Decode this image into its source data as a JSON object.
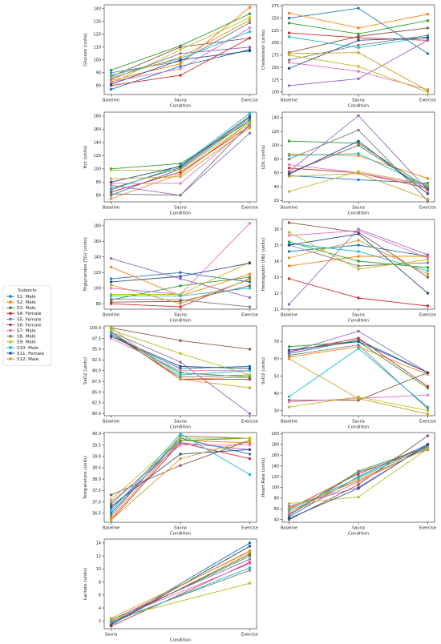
{
  "legend": {
    "title": "Subjects",
    "entries": [
      "S1: Male",
      "S2: Male",
      "S3: Male",
      "S4: Female",
      "S5: Female",
      "S6: Female",
      "S7: Male",
      "S8: Male",
      "S9: Male",
      "S10: Male",
      "S11: Female",
      "S12: Male"
    ],
    "colors": [
      "#1f77b4",
      "#ff7f0e",
      "#2ca02c",
      "#d62728",
      "#9467bd",
      "#8c564b",
      "#e377c2",
      "#7f7f7f",
      "#bcbd22",
      "#17becf",
      "#2b4a8b",
      "#c9a227"
    ],
    "placement": "left"
  },
  "chart_data": [
    {
      "type": "line",
      "ylabel": "Glucose (units)",
      "xlabel": "Condition",
      "categories": [
        "Baseline",
        "Sauna",
        "Exercise"
      ],
      "ylim": [
        73,
        143
      ],
      "yticks": [
        80,
        90,
        100,
        110,
        120,
        130,
        140
      ],
      "series": [
        {
          "values": [
            77,
            95,
            108
          ]
        },
        {
          "values": [
            84,
            97,
            141
          ]
        },
        {
          "values": [
            92,
            111,
            136
          ]
        },
        {
          "values": [
            80,
            88,
            117
          ]
        },
        {
          "values": [
            85,
            105,
            110
          ]
        },
        {
          "values": [
            87,
            110,
            117
          ]
        },
        {
          "values": [
            83,
            93,
            125
          ]
        },
        {
          "values": [
            90,
            99,
            129
          ]
        },
        {
          "values": [
            82,
            108,
            133
          ]
        },
        {
          "values": [
            88,
            101,
            122
          ]
        },
        {
          "values": [
            81,
            100,
            107
          ]
        },
        {
          "values": [
            86,
            102,
            131
          ]
        }
      ]
    },
    {
      "type": "line",
      "ylabel": "Cholesterol (units)",
      "xlabel": "Condition",
      "categories": [
        "Baseline",
        "Sauna",
        "Exercise"
      ],
      "ylim": [
        95,
        277
      ],
      "yticks": [
        100,
        125,
        150,
        175,
        200,
        225,
        250,
        275
      ],
      "series": [
        {
          "values": [
            250,
            270,
            178
          ]
        },
        {
          "values": [
            260,
            230,
            258
          ]
        },
        {
          "values": [
            240,
            218,
            245
          ]
        },
        {
          "values": [
            220,
            210,
            205
          ]
        },
        {
          "values": [
            113,
            127,
            205
          ]
        },
        {
          "values": [
            180,
            213,
            230
          ]
        },
        {
          "values": [
            160,
            142,
            105
          ]
        },
        {
          "values": [
            165,
            195,
            215
          ]
        },
        {
          "values": [
            175,
            152,
            100
          ]
        },
        {
          "values": [
            212,
            190,
            212
          ]
        },
        {
          "values": [
            148,
            205,
            210
          ]
        },
        {
          "values": [
            178,
            180,
            103
          ]
        }
      ]
    },
    {
      "type": "line",
      "ylabel": "Hct (units)",
      "xlabel": "Condition",
      "categories": [
        "Baseline",
        "Sauna",
        "Exercise"
      ],
      "ylim": [
        50,
        186
      ],
      "yticks": [
        60,
        80,
        100,
        120,
        140,
        160,
        180
      ],
      "series": [
        {
          "values": [
            60,
            100,
            175
          ]
        },
        {
          "values": [
            55,
            92,
            170
          ]
        },
        {
          "values": [
            100,
            108,
            172
          ]
        },
        {
          "values": [
            65,
            95,
            165
          ]
        },
        {
          "values": [
            75,
            60,
            154
          ]
        },
        {
          "values": [
            70,
            102,
            178
          ]
        },
        {
          "values": [
            78,
            78,
            165
          ]
        },
        {
          "values": [
            62,
            60,
            168
          ]
        },
        {
          "values": [
            98,
            98,
            170
          ]
        },
        {
          "values": [
            68,
            105,
            184
          ]
        },
        {
          "values": [
            80,
            104,
            180
          ]
        },
        {
          "values": [
            85,
            88,
            162
          ]
        }
      ]
    },
    {
      "type": "line",
      "ylabel": "LDL (units)",
      "xlabel": "Condition",
      "categories": [
        "Baseline",
        "Sauna",
        "Exercise"
      ],
      "ylim": [
        18,
        148
      ],
      "yticks": [
        20,
        40,
        60,
        80,
        100,
        120,
        140
      ],
      "series": [
        {
          "values": [
            56,
            50,
            45
          ]
        },
        {
          "values": [
            87,
            85,
            52
          ]
        },
        {
          "values": [
            106,
            103,
            38
          ]
        },
        {
          "values": [
            67,
            60,
            38
          ]
        },
        {
          "values": [
            62,
            143,
            35
          ]
        },
        {
          "values": [
            60,
            100,
            35
          ]
        },
        {
          "values": [
            72,
            60,
            42
          ]
        },
        {
          "values": [
            80,
            122,
            20
          ]
        },
        {
          "values": [
            33,
            62,
            43
          ]
        },
        {
          "values": [
            85,
            88,
            40
          ]
        },
        {
          "values": [
            58,
            106,
            30
          ]
        },
        {
          "values": [
            55,
            59,
            22
          ]
        }
      ]
    },
    {
      "type": "line",
      "ylabel": "Triglycerides (TG) (units)",
      "xlabel": "Condition",
      "categories": [
        "Baseline",
        "Sauna",
        "Exercise"
      ],
      "ylim": [
        73,
        188
      ],
      "yticks": [
        80,
        100,
        120,
        140,
        160,
        180
      ],
      "series": [
        {
          "values": [
            112,
            120,
            108
          ]
        },
        {
          "values": [
            127,
            90,
            118
          ]
        },
        {
          "values": [
            85,
            103,
            114
          ]
        },
        {
          "values": [
            80,
            76,
            112
          ]
        },
        {
          "values": [
            138,
            112,
            88
          ]
        },
        {
          "values": [
            82,
            83,
            103
          ]
        },
        {
          "values": [
            100,
            92,
            183
          ]
        },
        {
          "values": [
            86,
            85,
            76
          ]
        },
        {
          "values": [
            92,
            92,
            133
          ]
        },
        {
          "values": [
            90,
            90,
            100
          ]
        },
        {
          "values": [
            108,
            115,
            132
          ]
        },
        {
          "values": [
            104,
            80,
            111
          ]
        }
      ]
    },
    {
      "type": "line",
      "ylabel": "Hemoglobin (Hb) (units)",
      "xlabel": "Condition",
      "categories": [
        "Baseline",
        "Sauna",
        "Exercise"
      ],
      "ylim": [
        11,
        16.6
      ],
      "yticks": [
        11,
        12,
        13,
        14,
        15,
        16
      ],
      "series": [
        {
          "values": [
            14.6,
            15.0,
            14.3
          ]
        },
        {
          "values": [
            13.7,
            14.3,
            14.3
          ]
        },
        {
          "values": [
            15.2,
            14.0,
            13.6
          ]
        },
        {
          "values": [
            12.9,
            11.7,
            11.2
          ]
        },
        {
          "values": [
            11.3,
            16.0,
            14.4
          ]
        },
        {
          "values": [
            16.4,
            15.8,
            13.0
          ]
        },
        {
          "values": [
            15.6,
            15.9,
            14.2
          ]
        },
        {
          "values": [
            15.0,
            13.7,
            13.9
          ]
        },
        {
          "values": [
            15.8,
            13.5,
            14.1
          ]
        },
        {
          "values": [
            15.1,
            14.6,
            13.4
          ]
        },
        {
          "values": [
            15.0,
            15.7,
            12.0
          ]
        },
        {
          "values": [
            14.2,
            15.3,
            13.2
          ]
        }
      ]
    },
    {
      "type": "line",
      "ylabel": "SaO2 (units)",
      "xlabel": "Condition",
      "categories": [
        "Baseline",
        "Sauna",
        "Exercise"
      ],
      "ylim": [
        79.5,
        100.4
      ],
      "yticks": [
        80.0,
        82.5,
        85.0,
        87.5,
        90.0,
        92.5,
        95.0,
        97.5,
        100.0
      ],
      "series": [
        {
          "values": [
            98,
            90.5,
            91
          ]
        },
        {
          "values": [
            99,
            88,
            88.5
          ]
        },
        {
          "values": [
            98.5,
            89.5,
            88.5
          ]
        },
        {
          "values": [
            99,
            88,
            88
          ]
        },
        {
          "values": [
            99,
            92,
            80
          ]
        },
        {
          "values": [
            100,
            97,
            95
          ]
        },
        {
          "values": [
            97.5,
            90,
            90
          ]
        },
        {
          "values": [
            98.5,
            88.5,
            89
          ]
        },
        {
          "values": [
            99.5,
            94,
            89
          ]
        },
        {
          "values": [
            99,
            89,
            90
          ]
        },
        {
          "values": [
            98,
            91,
            90.5
          ]
        },
        {
          "values": [
            100,
            88,
            86
          ]
        }
      ]
    },
    {
      "type": "line",
      "ylabel": "SvO2 (units)",
      "xlabel": "Condition",
      "categories": [
        "Baseline",
        "Sauna",
        "Exercise"
      ],
      "ylim": [
        27,
        79
      ],
      "yticks": [
        30,
        40,
        50,
        60,
        70
      ],
      "series": [
        {
          "values": [
            63,
            71,
            52
          ]
        },
        {
          "values": [
            61,
            67,
            51
          ]
        },
        {
          "values": [
            67,
            70,
            43
          ]
        },
        {
          "values": [
            64,
            72,
            44
          ]
        },
        {
          "values": [
            64,
            76,
            52
          ]
        },
        {
          "values": [
            36,
            36,
            52
          ]
        },
        {
          "values": [
            35,
            37,
            39
          ]
        },
        {
          "values": [
            62,
            68,
            31
          ]
        },
        {
          "values": [
            32,
            38,
            30
          ]
        },
        {
          "values": [
            38,
            66,
            32
          ]
        },
        {
          "values": [
            65,
            70,
            52
          ]
        },
        {
          "values": [
            60,
            37,
            28
          ]
        }
      ]
    },
    {
      "type": "line",
      "ylabel": "Temperature (units)",
      "xlabel": "Condition",
      "categories": [
        "Baseline",
        "Sauna",
        "Exercise"
      ],
      "ylim": [
        36.1,
        40.05
      ],
      "yticks": [
        36.5,
        37.0,
        37.5,
        38.0,
        38.5,
        39.0,
        39.5,
        40.0
      ],
      "series": [
        {
          "values": [
            36.5,
            39.8,
            39.1
          ]
        },
        {
          "values": [
            36.3,
            39.7,
            39.6
          ]
        },
        {
          "values": [
            36.9,
            39.7,
            39.8
          ]
        },
        {
          "values": [
            36.2,
            39.6,
            38.9
          ]
        },
        {
          "values": [
            36.7,
            39.6,
            39.3
          ]
        },
        {
          "values": [
            37.3,
            38.6,
            39.7
          ]
        },
        {
          "values": [
            37.0,
            39.5,
            39.5
          ]
        },
        {
          "values": [
            36.4,
            39.9,
            39.8
          ]
        },
        {
          "values": [
            37.1,
            39.8,
            39.8
          ]
        },
        {
          "values": [
            36.6,
            40.0,
            38.2
          ]
        },
        {
          "values": [
            36.8,
            39.1,
            39.3
          ]
        },
        {
          "values": [
            36.2,
            38.9,
            39.7
          ]
        }
      ]
    },
    {
      "type": "line",
      "ylabel": "Heart Rate (units)",
      "xlabel": "Condition",
      "categories": [
        "Baseline",
        "Sauna",
        "Exercise"
      ],
      "ylim": [
        35,
        202
      ],
      "yticks": [
        40,
        60,
        80,
        100,
        120,
        140,
        160,
        180,
        200
      ],
      "series": [
        {
          "values": [
            45,
            120,
            180
          ]
        },
        {
          "values": [
            55,
            115,
            172
          ]
        },
        {
          "values": [
            50,
            130,
            175
          ]
        },
        {
          "values": [
            60,
            125,
            176
          ]
        },
        {
          "values": [
            65,
            100,
            178
          ]
        },
        {
          "values": [
            40,
            105,
            196
          ]
        },
        {
          "values": [
            52,
            110,
            174
          ]
        },
        {
          "values": [
            48,
            128,
            170
          ]
        },
        {
          "values": [
            70,
            82,
            172
          ]
        },
        {
          "values": [
            58,
            118,
            175
          ]
        },
        {
          "values": [
            42,
            98,
            180
          ]
        },
        {
          "values": [
            62,
            112,
            173
          ]
        }
      ]
    },
    {
      "type": "line",
      "ylabel": "Lactate (units)",
      "xlabel": "Condition",
      "categories": [
        "Sauna",
        "Exercise"
      ],
      "ylim": [
        0.8,
        14.6
      ],
      "yticks": [
        2,
        4,
        6,
        8,
        10,
        12,
        14
      ],
      "series": [
        {
          "values": [
            1.5,
            14.0
          ]
        },
        {
          "values": [
            2.0,
            12.8
          ]
        },
        {
          "values": [
            1.8,
            12.0
          ]
        },
        {
          "values": [
            1.2,
            11.0
          ]
        },
        {
          "values": [
            2.2,
            11.5
          ]
        },
        {
          "values": [
            1.6,
            12.3
          ]
        },
        {
          "values": [
            2.1,
            10.8
          ]
        },
        {
          "values": [
            1.9,
            9.8
          ]
        },
        {
          "values": [
            2.3,
            7.8
          ]
        },
        {
          "values": [
            1.7,
            10.2
          ]
        },
        {
          "values": [
            1.4,
            13.5
          ]
        },
        {
          "values": [
            2.4,
            12.6
          ]
        }
      ]
    }
  ]
}
